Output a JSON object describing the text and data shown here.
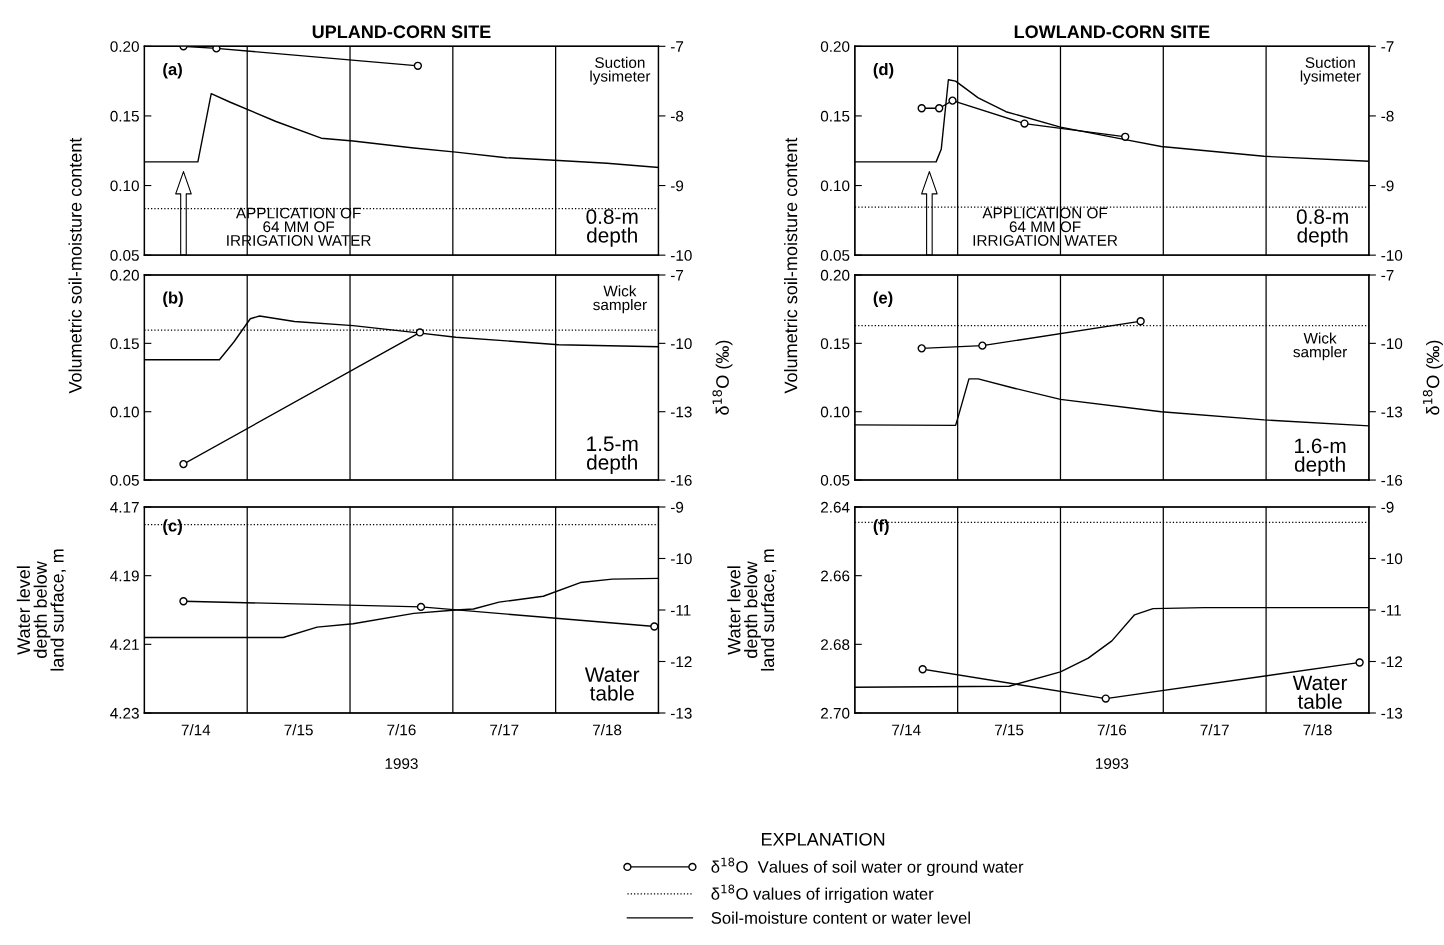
{
  "chart_data": [
    {
      "type": "line",
      "title": "UPLAND-CORN SITE",
      "ylabel": "Volumetric soil-moisture content",
      "xlim": [
        "1993-07-14",
        "1993-07-19"
      ],
      "xticks": [
        "1993-07-14T12:00",
        "1993-07-15T12:00",
        "1993-07-16T12:00",
        "1993-07-17T12:00",
        "1993-07-18T12:00"
      ],
      "tick_labels": "y",
      "ylim": [
        0.05,
        0.2
      ],
      "yticks": [
        0.05,
        {
          "value": 0.1,
          "label": "0.10"
        },
        0.15,
        {
          "value": 0.2,
          "label": "0.20"
        }
      ],
      "y2lim": [
        -10,
        -7
      ],
      "y2ticks": [
        -10,
        -9,
        -8,
        -7
      ],
      "series": [
        {
          "color": "#000000",
          "marker": "none",
          "x": [
            "1993-07-14T00:00",
            "1993-07-14T12:29",
            "1993-07-14T15:36",
            "1993-07-14T19:55",
            "1993-07-15T06:43",
            "1993-07-15T17:17",
            "1993-07-16T00:43",
            "1993-07-16T14:53",
            "1993-07-17T00:43",
            "1993-07-17T12:29",
            "1993-07-18T00:43",
            "1993-07-18T12:00",
            "1993-07-19T00:00"
          ],
          "values": [
            0.117,
            0.117,
            0.166,
            0.16,
            0.146,
            0.134,
            0.132,
            0.127,
            0.124,
            0.12,
            0.118,
            0.116,
            0.113
          ]
        },
        {
          "color": "#000000",
          "marker": "circle",
          "axis": "y2",
          "x": [
            "1993-07-14T09:07",
            "1993-07-14T16:48",
            "1993-07-16T15:50"
          ],
          "values": [
            -7.0,
            -7.03,
            -7.28
          ]
        }
      ],
      "ref_lines": [
        {
          "axis": "y2",
          "value": -9.33,
          "color": "#000000",
          "line_style": "dotted"
        },
        {
          "axis": "x",
          "value": "1993-07-15",
          "color": "#000000",
          "line_style": "solid"
        },
        {
          "axis": "x",
          "value": "1993-07-16",
          "color": "#000000",
          "line_style": "solid"
        },
        {
          "axis": "x",
          "value": "1993-07-17",
          "color": "#000000",
          "line_style": "solid"
        },
        {
          "axis": "x",
          "value": "1993-07-18",
          "color": "#000000",
          "line_style": "solid"
        }
      ],
      "annotations": [
        "(a)",
        "Suction\nlysimeter",
        "0.8-m\ndepth",
        "APPLICATION OF\n64 MM OF\nIRRIGATION WATER"
      ]
    },
    {
      "type": "line",
      "y2label": "δ$^{18}$O (‰)",
      "xlim": [
        "1993-07-14",
        "1993-07-19"
      ],
      "xticks": [
        "1993-07-14T12:00",
        "1993-07-15T12:00",
        "1993-07-16T12:00",
        "1993-07-17T12:00",
        "1993-07-18T12:00"
      ],
      "tick_labels": "y",
      "ylim": [
        0.05,
        0.2
      ],
      "yticks": [
        0.05,
        {
          "value": 0.1,
          "label": "0.10"
        },
        0.15,
        {
          "value": 0.2,
          "label": "0.20"
        }
      ],
      "y2lim": [
        -16,
        -7
      ],
      "y2ticks": [
        -16,
        -13,
        -10,
        -7
      ],
      "series": [
        {
          "color": "#000000",
          "marker": "none",
          "x": [
            "1993-07-14T00:00",
            "1993-07-14T17:31",
            "1993-07-14T20:53",
            "1993-07-15T00:43",
            "1993-07-15T02:53",
            "1993-07-15T11:02",
            "1993-07-16T00:43",
            "1993-07-16T14:53",
            "1993-07-17T00:43",
            "1993-07-18T00:43",
            "1993-07-19T00:00"
          ],
          "values": [
            0.138,
            0.138,
            0.151,
            0.168,
            0.17,
            0.166,
            0.163,
            0.158,
            0.1545,
            0.149,
            0.1475
          ]
        },
        {
          "color": "#000000",
          "marker": "circle",
          "axis": "y2",
          "x": [
            "1993-07-14T09:07",
            "1993-07-16T16:19"
          ],
          "values": [
            -15.3,
            -9.52
          ]
        }
      ],
      "ref_lines": [
        {
          "axis": "y2",
          "value": -9.42,
          "color": "#000000",
          "line_style": "dotted"
        },
        {
          "axis": "x",
          "value": "1993-07-15",
          "color": "#000000",
          "line_style": "solid"
        },
        {
          "axis": "x",
          "value": "1993-07-16",
          "color": "#000000",
          "line_style": "solid"
        },
        {
          "axis": "x",
          "value": "1993-07-17",
          "color": "#000000",
          "line_style": "solid"
        },
        {
          "axis": "x",
          "value": "1993-07-18",
          "color": "#000000",
          "line_style": "solid"
        }
      ],
      "annotations": [
        "(b)",
        "Wick\nsampler",
        "1.5-m\ndepth"
      ]
    },
    {
      "type": "line",
      "ylabel": "Water level\ndepth below\nland surface, m",
      "xlabel": "1993",
      "xlim": [
        "1993-07-14",
        "1993-07-19"
      ],
      "xticks": [
        {
          "value": "1993-07-14T12:00",
          "label": "7/14"
        },
        {
          "value": "1993-07-15T12:00",
          "label": "7/15"
        },
        {
          "value": "1993-07-16T12:00",
          "label": "7/16"
        },
        {
          "value": "1993-07-17T12:00",
          "label": "7/17"
        },
        {
          "value": "1993-07-18T12:00",
          "label": "7/18"
        }
      ],
      "ylim": [
        4.23,
        4.17
      ],
      "yticks": [
        4.17,
        4.19,
        4.21,
        4.23
      ],
      "y2lim": [
        -13,
        -9
      ],
      "y2ticks": [
        -13,
        -12,
        -11,
        -10,
        -9
      ],
      "series": [
        {
          "color": "#000000",
          "marker": "none",
          "x": [
            "1993-07-14T00:00",
            "1993-07-15T08:24",
            "1993-07-15T16:19",
            "1993-07-16T00:43",
            "1993-07-16T14:53",
            "1993-07-17T00:43",
            "1993-07-17T04:48",
            "1993-07-17T10:48",
            "1993-07-17T21:07",
            "1993-07-18T05:46",
            "1993-07-18T13:12",
            "1993-07-19T00:00"
          ],
          "values": [
            4.208,
            4.208,
            4.205,
            4.204,
            4.201,
            4.2,
            4.1997,
            4.1977,
            4.196,
            4.192,
            4.191,
            4.1908
          ]
        },
        {
          "color": "#000000",
          "marker": "circle",
          "axis": "y2",
          "x": [
            "1993-07-14T09:07",
            "1993-07-16T16:34",
            "1993-07-18T23:02"
          ],
          "values": [
            -10.83,
            -10.94,
            -11.32
          ]
        }
      ],
      "ref_lines": [
        {
          "axis": "y2",
          "value": -9.34,
          "color": "#000000",
          "line_style": "dotted"
        },
        {
          "axis": "x",
          "value": "1993-07-15",
          "color": "#000000",
          "line_style": "solid"
        },
        {
          "axis": "x",
          "value": "1993-07-16",
          "color": "#000000",
          "line_style": "solid"
        },
        {
          "axis": "x",
          "value": "1993-07-17",
          "color": "#000000",
          "line_style": "solid"
        },
        {
          "axis": "x",
          "value": "1993-07-18",
          "color": "#000000",
          "line_style": "solid"
        }
      ],
      "annotations": [
        "(c)",
        "Water\ntable"
      ]
    },
    {
      "type": "line",
      "title": "LOWLAND-CORN SITE",
      "ylabel": "Volumetric soil-moisture content",
      "xlim": [
        "1993-07-14",
        "1993-07-19"
      ],
      "xticks": [
        "1993-07-14T12:00",
        "1993-07-15T12:00",
        "1993-07-16T12:00",
        "1993-07-17T12:00",
        "1993-07-18T12:00"
      ],
      "tick_labels": "y",
      "ylim": [
        0.05,
        0.2
      ],
      "yticks": [
        0.05,
        {
          "value": 0.1,
          "label": "0.10"
        },
        0.15,
        {
          "value": 0.2,
          "label": "0.20"
        }
      ],
      "y2lim": [
        -10,
        -7
      ],
      "y2ticks": [
        -10,
        -9,
        -8,
        -7
      ],
      "series": [
        {
          "color": "#000000",
          "marker": "none",
          "x": [
            "1993-07-14T00:00",
            "1993-07-14T18:58",
            "1993-07-14T20:10",
            "1993-07-14T21:50",
            "1993-07-14T23:31",
            "1993-07-15T04:48",
            "1993-07-15T11:17",
            "1993-07-16T00:00",
            "1993-07-16T15:07",
            "1993-07-16T23:31",
            "1993-07-17T23:31",
            "1993-07-19T00:00"
          ],
          "values": [
            0.117,
            0.117,
            0.126,
            0.176,
            0.175,
            0.163,
            0.153,
            0.142,
            0.133,
            0.128,
            0.121,
            0.1174
          ]
        },
        {
          "color": "#000000",
          "marker": "circle",
          "axis": "y2",
          "x": [
            "1993-07-14T15:36",
            "1993-07-14T19:41",
            "1993-07-14T22:48",
            "1993-07-15T15:36",
            "1993-07-16T15:07"
          ],
          "values": [
            -7.89,
            -7.89,
            -7.78,
            -8.11,
            -8.3
          ]
        }
      ],
      "ref_lines": [
        {
          "axis": "y2",
          "value": -9.31,
          "color": "#000000",
          "line_style": "dotted"
        },
        {
          "axis": "x",
          "value": "1993-07-15",
          "color": "#000000",
          "line_style": "solid"
        },
        {
          "axis": "x",
          "value": "1993-07-16",
          "color": "#000000",
          "line_style": "solid"
        },
        {
          "axis": "x",
          "value": "1993-07-17",
          "color": "#000000",
          "line_style": "solid"
        },
        {
          "axis": "x",
          "value": "1993-07-18",
          "color": "#000000",
          "line_style": "solid"
        }
      ],
      "annotations": [
        "(d)",
        "Suction\nlysimeter",
        "0.8-m\ndepth",
        "APPLICATION OF\n64 MM OF\nIRRIGATION WATER"
      ]
    },
    {
      "type": "line",
      "y2label": "δ$^{18}$O (‰)",
      "xlim": [
        "1993-07-14",
        "1993-07-19"
      ],
      "xticks": [
        "1993-07-14T12:00",
        "1993-07-15T12:00",
        "1993-07-16T12:00",
        "1993-07-17T12:00",
        "1993-07-18T12:00"
      ],
      "tick_labels": "y",
      "ylim": [
        0.05,
        0.2
      ],
      "yticks": [
        0.05,
        {
          "value": 0.1,
          "label": "0.10"
        },
        0.15,
        {
          "value": 0.2,
          "label": "0.20"
        }
      ],
      "y2lim": [
        -16,
        -7
      ],
      "y2ticks": [
        -16,
        -13,
        -10,
        -7
      ],
      "series": [
        {
          "color": "#000000",
          "marker": "none",
          "x": [
            "1993-07-14T00:00",
            "1993-07-14T23:31",
            "1993-07-15T00:14",
            "1993-07-15T02:38",
            "1993-07-15T04:48",
            "1993-07-15T13:26",
            "1993-07-16T00:00",
            "1993-07-16T23:31",
            "1993-07-17T23:31",
            "1993-07-19T00:00"
          ],
          "values": [
            0.0904,
            0.09,
            0.0975,
            0.124,
            0.124,
            0.117,
            0.109,
            0.1,
            0.094,
            0.0896
          ]
        },
        {
          "color": "#000000",
          "marker": "circle",
          "axis": "y2",
          "x": [
            "1993-07-14T15:36",
            "1993-07-15T05:46",
            "1993-07-16T18:43"
          ],
          "values": [
            -10.22,
            -10.1,
            -9.03
          ]
        }
      ],
      "ref_lines": [
        {
          "axis": "y2",
          "value": -9.22,
          "color": "#000000",
          "line_style": "dotted"
        },
        {
          "axis": "x",
          "value": "1993-07-15",
          "color": "#000000",
          "line_style": "solid"
        },
        {
          "axis": "x",
          "value": "1993-07-16",
          "color": "#000000",
          "line_style": "solid"
        },
        {
          "axis": "x",
          "value": "1993-07-17",
          "color": "#000000",
          "line_style": "solid"
        },
        {
          "axis": "x",
          "value": "1993-07-18",
          "color": "#000000",
          "line_style": "solid"
        }
      ],
      "annotations": [
        "(e)",
        "Wick\nsampler",
        "1.6-m\ndepth"
      ]
    },
    {
      "type": "line",
      "ylabel": "Water level\ndepth below\nland surface, m",
      "xlabel": "1993",
      "xlim": [
        "1993-07-14",
        "1993-07-19"
      ],
      "xticks": [
        {
          "value": "1993-07-14T12:00",
          "label": "7/14"
        },
        {
          "value": "1993-07-15T12:00",
          "label": "7/15"
        },
        {
          "value": "1993-07-16T12:00",
          "label": "7/16"
        },
        {
          "value": "1993-07-17T12:00",
          "label": "7/17"
        },
        {
          "value": "1993-07-18T12:00",
          "label": "7/18"
        }
      ],
      "ylim": [
        2.7,
        2.64
      ],
      "yticks": [
        2.64,
        2.66,
        2.68,
        {
          "value": 2.7,
          "label": "2.70"
        }
      ],
      "y2lim": [
        -13,
        -9
      ],
      "y2ticks": [
        -13,
        -12,
        -11,
        -10,
        -9
      ],
      "legend": "bottom",
      "legend_title": "EXPLANATION",
      "series": [
        {
          "name": "δ$^{18}$O  Values of soil water or ground water",
          "color": "#000000",
          "marker": "circle",
          "axis": "y2",
          "x": [
            "1993-07-14T15:50",
            "1993-07-16T10:34",
            "1993-07-18T21:50"
          ],
          "values": [
            -12.15,
            -12.72,
            -12.02
          ]
        },
        {
          "name": "Soil-moisture content or water level",
          "color": "#000000",
          "marker": "none",
          "x": [
            "1993-07-14T00:00",
            "1993-07-15T12:00",
            "1993-07-16T00:00",
            "1993-07-16T06:29",
            "1993-07-16T12:00",
            "1993-07-16T17:17",
            "1993-07-16T21:36",
            "1993-07-17T09:36",
            "1993-07-19T00:00"
          ],
          "values": [
            2.6925,
            2.6922,
            2.688,
            2.684,
            2.679,
            2.6714,
            2.6696,
            2.6693,
            2.6693
          ]
        }
      ],
      "ref_lines": [
        {
          "axis": "y2",
          "value": -9.3,
          "color": "#000000",
          "line_style": "dotted",
          "label": "δ$^{18}$O values of irrigation water"
        },
        {
          "axis": "x",
          "value": "1993-07-15",
          "color": "#000000",
          "line_style": "solid"
        },
        {
          "axis": "x",
          "value": "1993-07-16",
          "color": "#000000",
          "line_style": "solid"
        },
        {
          "axis": "x",
          "value": "1993-07-17",
          "color": "#000000",
          "line_style": "solid"
        },
        {
          "axis": "x",
          "value": "1993-07-18",
          "color": "#000000",
          "line_style": "solid"
        }
      ],
      "annotations": [
        "(f)",
        "Water\ntable"
      ]
    }
  ]
}
